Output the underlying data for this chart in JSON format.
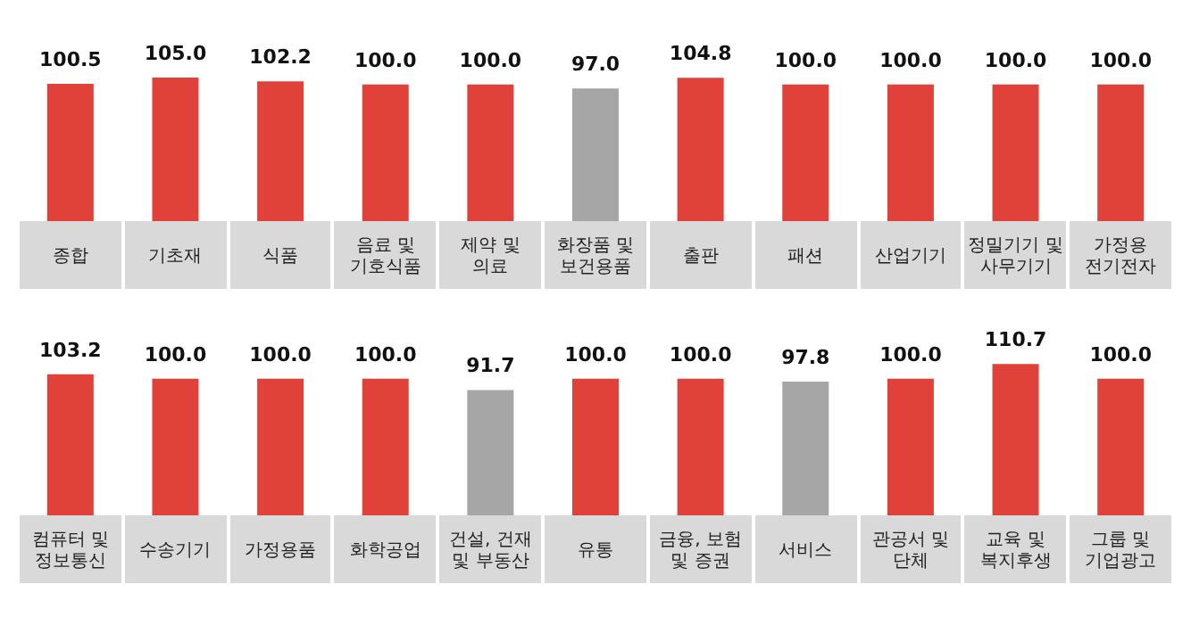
{
  "chart_data": [
    {
      "type": "bar",
      "categories": [
        "종합",
        "기초재",
        "식품",
        "음료 및 기호식품",
        "제약 및 의료",
        "화장품 및 보건용품",
        "출판",
        "패션",
        "산업기기",
        "정밀기기 및 사무기기",
        "가정용 전기전자"
      ],
      "values": [
        100.5,
        105.0,
        102.2,
        100.0,
        100.0,
        97.0,
        104.8,
        100.0,
        100.0,
        100.0,
        100.0
      ],
      "value_labels": [
        "100.5",
        "105.0",
        "102.2",
        "100.0",
        "100.0",
        "97.0",
        "104.8",
        "100.0",
        "100.0",
        "100.0",
        "100.0"
      ],
      "colors": [
        "#e0423a",
        "#e0423a",
        "#e0423a",
        "#e0423a",
        "#e0423a",
        "#a6a6a6",
        "#e0423a",
        "#e0423a",
        "#e0423a",
        "#e0423a",
        "#e0423a"
      ],
      "tick_labels": "x"
    },
    {
      "type": "bar",
      "categories": [
        "컴퓨터 및 정보통신",
        "수송기기",
        "가정용품",
        "화학공업",
        "건설, 건재 및 부동산",
        "유통",
        "금융, 보험 및 증권",
        "서비스",
        "관공서 및 단체",
        "교육 및 복지후생",
        "그룹 및 기업광고"
      ],
      "values": [
        103.2,
        100.0,
        100.0,
        100.0,
        91.7,
        100.0,
        100.0,
        97.8,
        100.0,
        110.7,
        100.0
      ],
      "value_labels": [
        "103.2",
        "100.0",
        "100.0",
        "100.0",
        "91.7",
        "100.0",
        "100.0",
        "97.8",
        "100.0",
        "110.7",
        "100.0"
      ],
      "colors": [
        "#e0423a",
        "#e0423a",
        "#e0423a",
        "#e0423a",
        "#a6a6a6",
        "#e0423a",
        "#e0423a",
        "#a6a6a6",
        "#e0423a",
        "#e0423a",
        "#e0423a"
      ],
      "tick_labels": "x"
    }
  ]
}
